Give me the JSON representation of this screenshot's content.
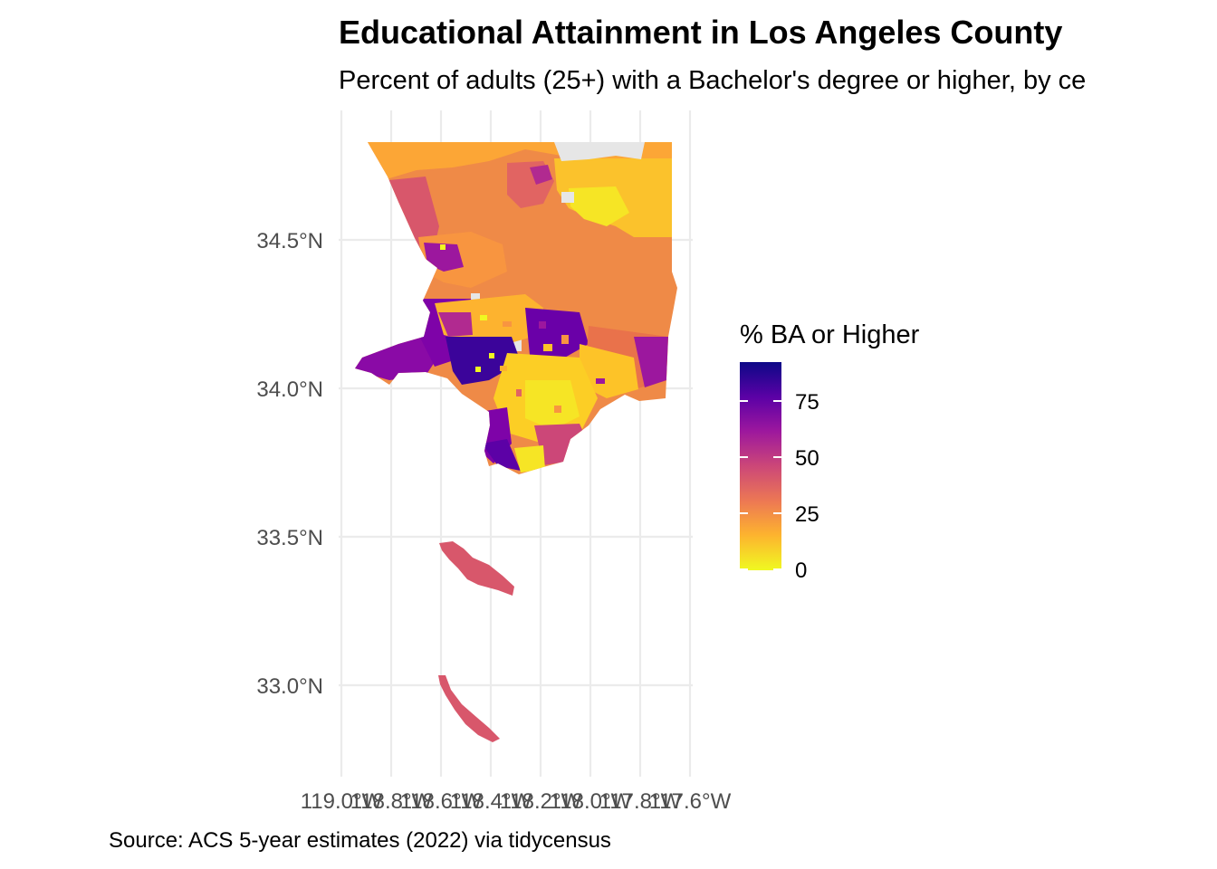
{
  "title": "Educational Attainment in Los Angeles County",
  "subtitle": "Percent of adults (25+) with a Bachelor's degree or higher, by ce",
  "caption": "Source: ACS 5-year estimates (2022) via tidycensus",
  "axes": {
    "lat_ticks": [
      {
        "value": 34.5,
        "label": "34.5°N"
      },
      {
        "value": 34.0,
        "label": "34.0°N"
      },
      {
        "value": 33.5,
        "label": "33.5°N"
      },
      {
        "value": 33.0,
        "label": "33.0°N"
      }
    ],
    "lon_ticks": [
      {
        "value": -119.0,
        "label": "119.0°W"
      },
      {
        "value": -118.8,
        "label": "118.8°W"
      },
      {
        "value": -118.6,
        "label": "118.6°W"
      },
      {
        "value": -118.4,
        "label": "118.4°W"
      },
      {
        "value": -118.2,
        "label": "118.2°W"
      },
      {
        "value": -118.0,
        "label": "118.0°W"
      },
      {
        "value": -117.8,
        "label": "117.8°W"
      },
      {
        "value": -117.6,
        "label": "117.6°W"
      }
    ]
  },
  "legend": {
    "title": "% BA or Higher",
    "breaks": [
      {
        "value": 0,
        "label": "0"
      },
      {
        "value": 25,
        "label": "25"
      },
      {
        "value": 50,
        "label": "50"
      },
      {
        "value": 75,
        "label": "75"
      }
    ],
    "range": [
      0,
      93
    ],
    "palette": [
      "#F0F921",
      "#FDB32F",
      "#ED7953",
      "#CC4778",
      "#9C179E",
      "#5C01A6",
      "#0D0887"
    ],
    "no_data_color": "#E6E6E6"
  },
  "map": {
    "region": "Los Angeles County",
    "fill_variable": "% BA or Higher"
  }
}
